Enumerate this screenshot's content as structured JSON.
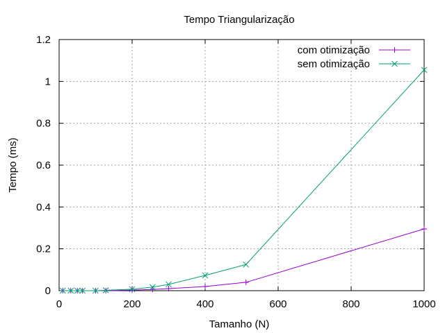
{
  "chart_data": {
    "type": "line",
    "title": "Tempo Triangularização",
    "xlabel": "Tamanho (N)",
    "ylabel": "Tempo (ms)",
    "xlim": [
      0,
      1000
    ],
    "ylim": [
      0,
      1.2
    ],
    "xticks": [
      0,
      200,
      400,
      600,
      800,
      1000
    ],
    "yticks": [
      0,
      0.2,
      0.4,
      0.6,
      0.8,
      1,
      1.2
    ],
    "xtick_labels": [
      "0",
      "200",
      "400",
      "600",
      "800",
      "1000"
    ],
    "ytick_labels": [
      "0",
      "0.2",
      "0.4",
      "0.6",
      "0.8",
      "1",
      "1.2"
    ],
    "grid": true,
    "legend_position": "top-right",
    "series": [
      {
        "name": "com otimização",
        "color": "#9400d3",
        "marker": "plus",
        "x": [
          10,
          32,
          50,
          64,
          100,
          128,
          200,
          256,
          300,
          400,
          512,
          1000
        ],
        "y": [
          0,
          0,
          0,
          0,
          0,
          0,
          0.003,
          0.006,
          0.01,
          0.02,
          0.04,
          0.295
        ]
      },
      {
        "name": "sem otimização",
        "color": "#009e73",
        "marker": "cross",
        "x": [
          10,
          32,
          50,
          64,
          100,
          128,
          200,
          256,
          300,
          400,
          512,
          1000
        ],
        "y": [
          0,
          0,
          0,
          0,
          0,
          0.002,
          0.007,
          0.017,
          0.03,
          0.073,
          0.125,
          1.055
        ]
      }
    ]
  }
}
